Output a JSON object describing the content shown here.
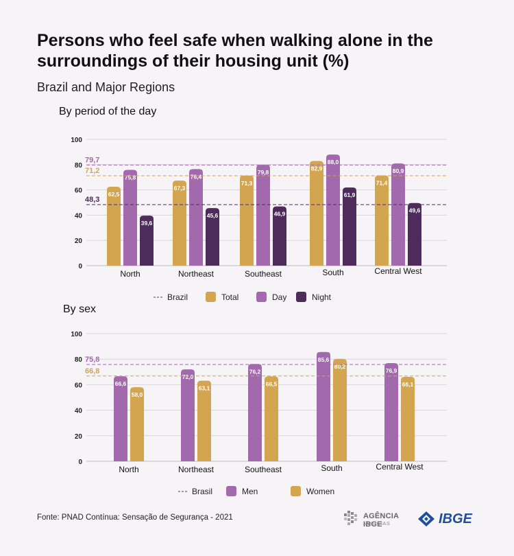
{
  "header": {
    "title": "Persons who feel safe when walking alone in the surroundings of their housing unit (%)",
    "subtitle": "Brazil and Major Regions"
  },
  "footer": {
    "source": "Fonte: PNAD Contínua: Sensação de Segurança - 2021",
    "logo_agencia_main": "AGÊNCIA IBGE",
    "logo_agencia_sub": "NOTÍCIAS",
    "logo_ibge": "IBGE"
  },
  "colors": {
    "total": "#d3a550",
    "day": "#a26aad",
    "night": "#4d2c5c",
    "men": "#a26aad",
    "women": "#d3a550",
    "grid": "#d9d5da",
    "text": "#222222"
  },
  "chart_data": [
    {
      "type": "bar",
      "title": "By period of the day",
      "categories": [
        "North",
        "Northeast",
        "Southeast",
        "South",
        "Central West"
      ],
      "series": [
        {
          "name": "Total",
          "values": [
            62.5,
            67.3,
            71.3,
            82.9,
            71.4
          ],
          "labels": [
            "62,5",
            "67,3",
            "71,3",
            "82,9",
            "71,4"
          ],
          "color": "#d3a550"
        },
        {
          "name": "Day",
          "values": [
            75.8,
            76.4,
            79.8,
            88.0,
            80.9
          ],
          "labels": [
            "75,8",
            "76,4",
            "79,8",
            "88,0",
            "80,9"
          ],
          "color": "#a26aad"
        },
        {
          "name": "Night",
          "values": [
            39.6,
            45.6,
            46.9,
            61.9,
            49.6
          ],
          "labels": [
            "39,6",
            "45,6",
            "46,9",
            "61,9",
            "49,6"
          ],
          "color": "#4d2c5c"
        }
      ],
      "reference_lines": [
        {
          "value": 79.7,
          "label": "79,7",
          "color": "#a26aad"
        },
        {
          "value": 71.2,
          "label": "71,2",
          "color": "#d3a550"
        },
        {
          "value": 48.3,
          "label": "48,3",
          "color": "#4d2c5c"
        }
      ],
      "reference_legend": "Brazil",
      "ylim": [
        0,
        100
      ],
      "yticks": [
        0,
        20,
        40,
        60,
        80,
        100
      ],
      "grid": true,
      "legend_position": "bottom"
    },
    {
      "type": "bar",
      "title": "By sex",
      "categories": [
        "North",
        "Northeast",
        "Southeast",
        "South",
        "Central West"
      ],
      "series": [
        {
          "name": "Men",
          "values": [
            66.6,
            72.0,
            76.2,
            85.6,
            76.9
          ],
          "labels": [
            "66,6",
            "72,0",
            "76,2",
            "85,6",
            "76,9"
          ],
          "color": "#a26aad"
        },
        {
          "name": "Women",
          "values": [
            58.0,
            63.1,
            66.5,
            80.2,
            66.1
          ],
          "labels": [
            "58,0",
            "63,1",
            "66,5",
            "80,2",
            "66,1"
          ],
          "color": "#d3a550"
        }
      ],
      "reference_lines": [
        {
          "value": 75.8,
          "label": "75,8",
          "color": "#a26aad"
        },
        {
          "value": 66.8,
          "label": "66,8",
          "color": "#d3a550"
        }
      ],
      "reference_legend": "Brasil",
      "ylim": [
        0,
        100
      ],
      "yticks": [
        0,
        20,
        40,
        60,
        80,
        100
      ],
      "grid": true,
      "legend_position": "bottom"
    }
  ]
}
